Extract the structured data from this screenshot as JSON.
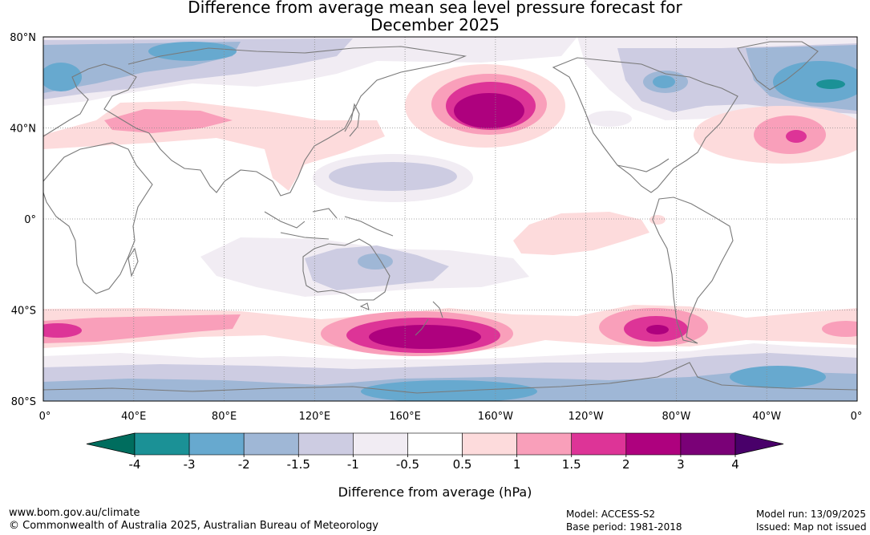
{
  "title_line1": "Difference from average mean sea level pressure forecast for",
  "title_line2": "December 2025",
  "lat_labels": [
    "80°N",
    "40°N",
    "0°",
    "40°S",
    "80°S"
  ],
  "lon_labels": [
    "0°",
    "40°E",
    "80°E",
    "120°E",
    "160°E",
    "160°W",
    "120°W",
    "80°W",
    "40°W",
    "0°"
  ],
  "colorbar": {
    "label": "Difference from average (hPa)",
    "ticks": [
      "-4",
      "-3",
      "-2",
      "-1.5",
      "-1",
      "-0.5",
      "0.5",
      "1",
      "1.5",
      "2",
      "3",
      "4"
    ],
    "colors": [
      "#006d5e",
      "#1b9196",
      "#67a9cf",
      "#9fb7d6",
      "#cdcce2",
      "#f1ecf3",
      "#ffffff",
      "#fddbdc",
      "#f99fba",
      "#dd3497",
      "#ae017e",
      "#7a0177",
      "#49006a"
    ]
  },
  "footer": {
    "url": "www.bom.gov.au/climate",
    "copyright": "© Commonwealth of Australia 2025, Australian Bureau of Meteorology",
    "model": "Model: ACCESS-S2",
    "base_period": "Base period: 1981-2018",
    "model_run": "Model run: 13/09/2025",
    "issued": "Issued: Map not issued"
  },
  "map": {
    "lon_range": [
      0,
      360
    ],
    "lat_range": [
      -80,
      80
    ],
    "grid": true,
    "anomalies": [
      {
        "type": "blob",
        "region": "Arctic/Eurasia",
        "level": -1.5
      },
      {
        "type": "blob",
        "region": "North Pacific (Aleutian)",
        "level": 3
      },
      {
        "type": "blob",
        "region": "Central Asia",
        "level": 1.5
      },
      {
        "type": "blob",
        "region": "North Atlantic",
        "level": 2
      },
      {
        "type": "blob",
        "region": "Greenland",
        "level": -3
      },
      {
        "type": "blob",
        "region": "Southern Ocean south of New Zealand",
        "level": 3
      },
      {
        "type": "blob",
        "region": "Southern Ocean near South America",
        "level": 3
      },
      {
        "type": "band",
        "region": "Antarctic coast",
        "level": -2
      }
    ]
  }
}
